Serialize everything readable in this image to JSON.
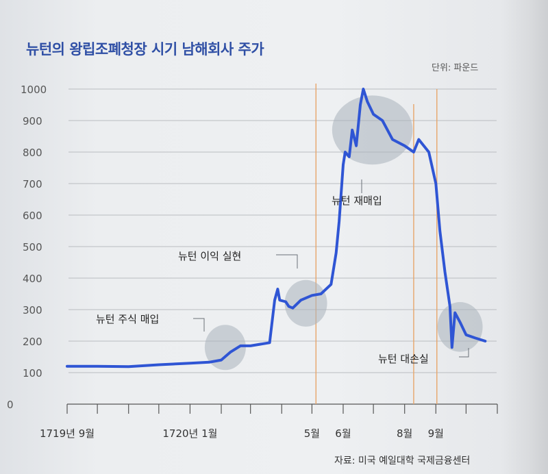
{
  "title": "뉴턴의 왕립조폐청장 시기 남해회사 주가",
  "unit_label": "단위: 파운드",
  "source": "자료: 미국 예일대학 국제금융센터",
  "colors": {
    "line": "#2f55d4",
    "vline": "#e7a56a",
    "highlight": "#a9b2bb",
    "grid": "#b9bcc0"
  },
  "chart_data": {
    "type": "line",
    "title": "뉴턴의 왕립조폐청장 시기 남해회사 주가",
    "xlabel": "",
    "ylabel": "단위: 파운드",
    "ylim": [
      0,
      1000
    ],
    "yticks": [
      0,
      100,
      200,
      300,
      400,
      500,
      600,
      700,
      800,
      900,
      1000
    ],
    "x_tick_labels": [
      "1719년 9월",
      "1720년 1월",
      "5월",
      "6월",
      "8월",
      "9월"
    ],
    "grid": true,
    "series": [
      {
        "values": [
          [
            "1719-09-01",
            120
          ],
          [
            "1719-10-01",
            120
          ],
          [
            "1719-11-01",
            119
          ],
          [
            "1719-12-01",
            125
          ],
          [
            "1720-01-01",
            130
          ],
          [
            "1720-01-20",
            133
          ],
          [
            "1720-02-01",
            140
          ],
          [
            "1720-02-10",
            165
          ],
          [
            "1720-02-20",
            185
          ],
          [
            "1720-03-01",
            185
          ],
          [
            "1720-03-20",
            195
          ],
          [
            "1720-03-25",
            330
          ],
          [
            "1720-03-28",
            365
          ],
          [
            "1720-03-30",
            330
          ],
          [
            "1720-04-05",
            325
          ],
          [
            "1720-04-08",
            310
          ],
          [
            "1720-04-12",
            305
          ],
          [
            "1720-04-20",
            330
          ],
          [
            "1720-05-01",
            345
          ],
          [
            "1720-05-10",
            350
          ],
          [
            "1720-05-20",
            380
          ],
          [
            "1720-05-25",
            480
          ],
          [
            "1720-05-28",
            580
          ],
          [
            "1720-06-01",
            760
          ],
          [
            "1720-06-03",
            800
          ],
          [
            "1720-06-07",
            785
          ],
          [
            "1720-06-10",
            870
          ],
          [
            "1720-06-14",
            820
          ],
          [
            "1720-06-18",
            950
          ],
          [
            "1720-06-21",
            1000
          ],
          [
            "1720-06-25",
            960
          ],
          [
            "1720-07-01",
            920
          ],
          [
            "1720-07-10",
            900
          ],
          [
            "1720-07-20",
            840
          ],
          [
            "1720-08-01",
            820
          ],
          [
            "1720-08-10",
            800
          ],
          [
            "1720-08-15",
            840
          ],
          [
            "1720-08-20",
            820
          ],
          [
            "1720-08-25",
            800
          ],
          [
            "1720-09-01",
            700
          ],
          [
            "1720-09-05",
            550
          ],
          [
            "1720-09-10",
            420
          ],
          [
            "1720-09-15",
            310
          ],
          [
            "1720-09-17",
            180
          ],
          [
            "1720-09-20",
            290
          ],
          [
            "1720-09-25",
            260
          ],
          [
            "1720-10-01",
            220
          ],
          [
            "1720-10-10",
            210
          ],
          [
            "1720-10-20",
            200
          ]
        ]
      }
    ],
    "vertical_markers": [
      "5월",
      "8월",
      "9월"
    ],
    "annotations": [
      {
        "text": "뉴턴 주식 매입",
        "date": "1720-02-05"
      },
      {
        "text": "뉴턴 이익 실현",
        "date": "1720-04-15"
      },
      {
        "text": "뉴턴 재매입",
        "date": "1720-06-15"
      },
      {
        "text": "뉴턴 대손실",
        "date": "1720-09-20"
      }
    ]
  }
}
